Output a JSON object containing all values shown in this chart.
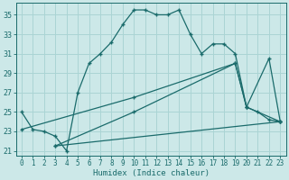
{
  "xlabel": "Humidex (Indice chaleur)",
  "bg_color": "#cce8e8",
  "line_color": "#1a6b6b",
  "grid_color": "#aad4d4",
  "ylim": [
    20.5,
    36.2
  ],
  "xlim": [
    -0.5,
    23.5
  ],
  "yticks": [
    21,
    23,
    25,
    27,
    29,
    31,
    33,
    35
  ],
  "xticks": [
    0,
    1,
    2,
    3,
    4,
    5,
    6,
    7,
    8,
    9,
    10,
    11,
    12,
    13,
    14,
    15,
    16,
    17,
    18,
    19,
    20,
    21,
    22,
    23
  ],
  "line1_x": [
    0,
    1,
    2,
    3,
    4,
    5,
    6,
    7,
    8,
    9,
    10,
    11,
    12,
    13,
    14,
    15,
    16,
    17,
    18,
    19,
    20,
    21,
    22,
    23
  ],
  "line1_y": [
    25.0,
    23.2,
    23.0,
    22.5,
    21.0,
    27.0,
    30.0,
    31.0,
    32.2,
    34.0,
    35.5,
    35.5,
    35.0,
    35.0,
    35.5,
    33.0,
    31.0,
    32.0,
    32.0,
    31.0,
    25.5,
    25.0,
    24.2,
    24.0
  ],
  "line2_x": [
    0,
    10,
    19,
    20,
    22,
    23
  ],
  "line2_y": [
    23.2,
    26.5,
    30.0,
    25.5,
    30.5,
    24.0
  ],
  "line3_x": [
    3,
    10,
    19,
    20,
    23
  ],
  "line3_y": [
    21.5,
    25.0,
    30.0,
    25.5,
    24.0
  ],
  "line4_x": [
    3,
    23
  ],
  "line4_y": [
    21.5,
    24.0
  ]
}
